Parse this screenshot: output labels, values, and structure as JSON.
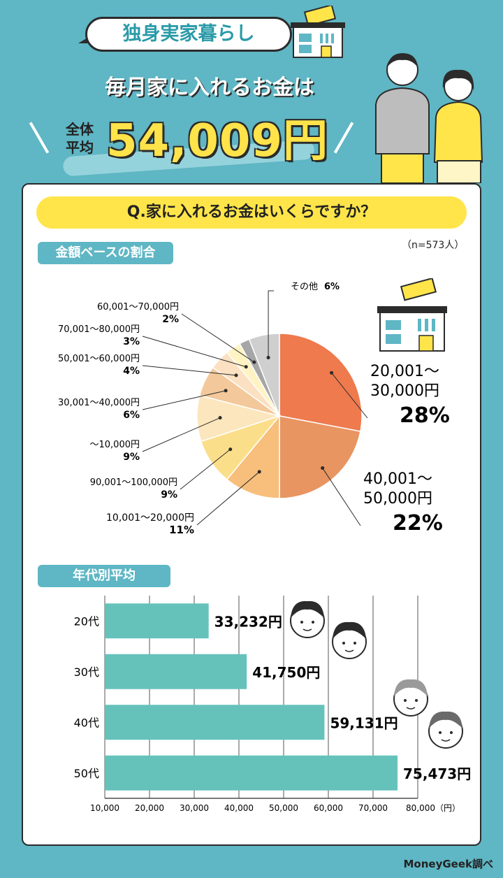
{
  "header": {
    "topic": "独身実家暮らし",
    "headline": "毎月家に入れるお金は",
    "avg_label_1": "全体",
    "avg_label_2": "平均",
    "avg_value": "54,009円"
  },
  "question": "Q.家に入れるお金はいくらですか？",
  "sample_size": "（n=573人）",
  "credit": "MoneyGeek調べ",
  "colors": {
    "background": "#5fb6c4",
    "accent_yellow": "#ffe54a",
    "bar": "#65c2bb",
    "panel": "#ffffff"
  },
  "icons": [
    "house-with-money-icon",
    "couple-illustration",
    "young-man-face-icon",
    "young-woman-face-icon",
    "middle-aged-woman-face-icon",
    "middle-aged-man-face-icon"
  ],
  "chart_data": [
    {
      "type": "pie",
      "title": "金額ベースの割合",
      "slices": [
        {
          "label": "20,001〜30,000円",
          "value": 28,
          "value_label": "28%",
          "color": "#ee7a4e"
        },
        {
          "label": "40,001〜50,000円",
          "value": 22,
          "value_label": "22%",
          "color": "#e89561"
        },
        {
          "label": "10,001〜20,000円",
          "value": 11,
          "value_label": "11%",
          "color": "#f7bf7b"
        },
        {
          "label": "90,001〜100,000円",
          "value": 9,
          "value_label": "9%",
          "color": "#fbde8a"
        },
        {
          "label": "〜10,000円",
          "value": 9,
          "value_label": "9%",
          "color": "#fbe6bd"
        },
        {
          "label": "30,001〜40,000円",
          "value": 6,
          "value_label": "6%",
          "color": "#f3c89a"
        },
        {
          "label": "50,001〜60,000円",
          "value": 4,
          "value_label": "4%",
          "color": "#fbe0c2"
        },
        {
          "label": "70,001〜80,000円",
          "value": 3,
          "value_label": "3%",
          "color": "#fff3c4"
        },
        {
          "label": "60,001〜70,000円",
          "value": 2,
          "value_label": "2%",
          "color": "#a6a6a6"
        },
        {
          "label": "その他",
          "value": 6,
          "value_label": "6%",
          "color": "#cfcfcf"
        }
      ]
    },
    {
      "type": "bar",
      "title": "年代別平均",
      "orientation": "horizontal",
      "categories": [
        "20代",
        "30代",
        "40代",
        "50代"
      ],
      "values": [
        33232,
        41750,
        59131,
        75473
      ],
      "value_labels": [
        "33,232円",
        "41,750円",
        "59,131円",
        "75,473円"
      ],
      "xlim": [
        10000,
        80000
      ],
      "x_ticks": [
        "10,000",
        "20,000",
        "30,000",
        "40,000",
        "50,000",
        "60,000",
        "70,000",
        "80,000（円）"
      ],
      "grid": true
    }
  ]
}
